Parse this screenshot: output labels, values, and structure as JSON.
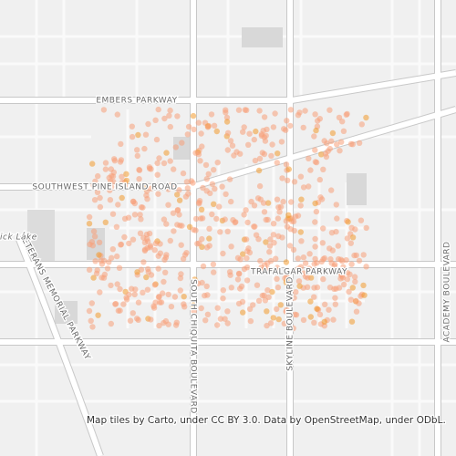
{
  "map": {
    "labels": {
      "embers": "EMBERS PARKWAY",
      "pine_island": "SOUTHWEST PINE ISLAND ROAD",
      "trafalgar": "TRAFALGAR PARKWAY",
      "chiquita": "SOUTH CHIQUITA BOULEVARD",
      "skyline": "SKYLINE BOULEVARD",
      "veterans": "VETERANS MEMORIAL PARKWAY",
      "academy": "ACADEMY BOULEVARD",
      "lake": "ick Lake"
    },
    "attribution": "Map tiles by Carto, under CC BY 3.0. Data by OpenStreetMap, under ODbL."
  }
}
